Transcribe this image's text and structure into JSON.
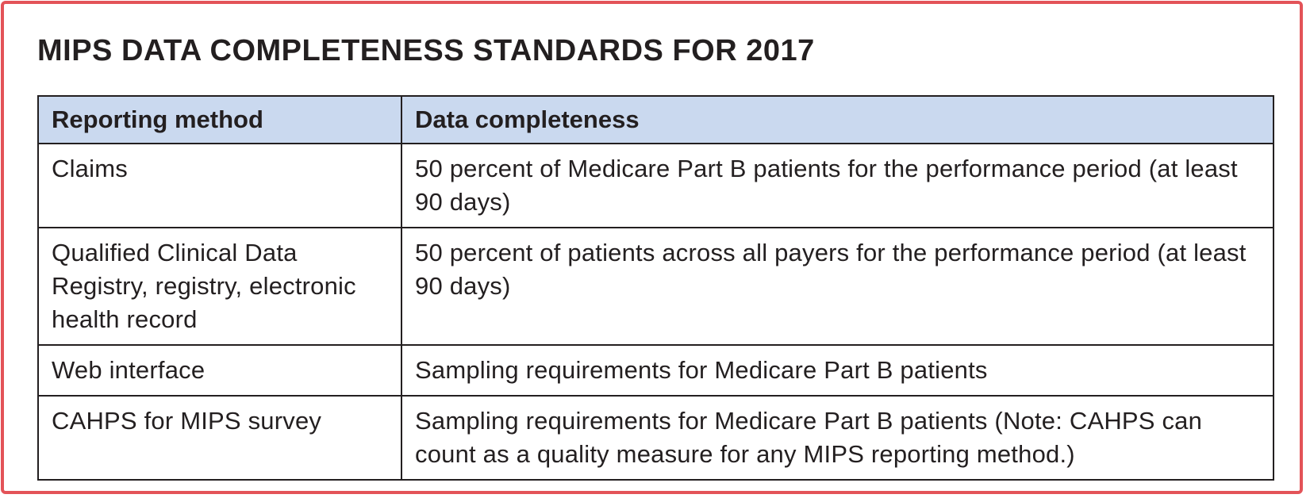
{
  "title": "MIPS DATA COMPLETENESS STANDARDS FOR 2017",
  "table": {
    "headers": [
      "Reporting method",
      "Data completeness"
    ],
    "rows": [
      {
        "method": "Claims",
        "completeness": "50 percent of Medicare Part B patients for the performance period (at least 90 days)"
      },
      {
        "method": "Qualified Clinical Data Registry, registry, electronic health record",
        "completeness": "50 percent of patients across all payers for the performance period (at least 90 days)"
      },
      {
        "method": "Web interface",
        "completeness": "Sampling requirements for Medicare Part B patients"
      },
      {
        "method": "CAHPS for MIPS survey",
        "completeness": "Sampling requirements for Medicare Part B patients (Note: CAHPS can count as a quality measure for any MIPS reporting method.)"
      }
    ]
  },
  "colors": {
    "border_accent": "#e35358",
    "header_fill": "#cad9ef",
    "text": "#231f20"
  }
}
